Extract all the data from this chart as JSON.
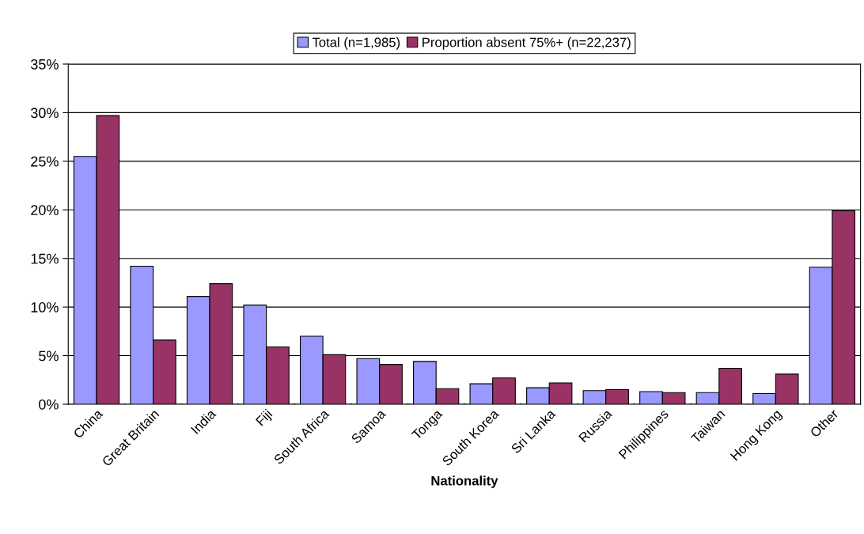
{
  "chart_data": {
    "type": "bar",
    "xlabel": "Nationality",
    "categories": [
      "China",
      "Great Britain",
      "India",
      "Fiji",
      "South Africa",
      "Samoa",
      "Tonga",
      "South Korea",
      "Sri Lanka",
      "Russia",
      "Philippines",
      "Taiwan",
      "Hong Kong",
      "Other"
    ],
    "series": [
      {
        "name": "Total (n=1,985)",
        "color": "#9999ff",
        "values": [
          25.5,
          14.2,
          11.1,
          10.2,
          7.0,
          4.7,
          4.4,
          2.1,
          1.7,
          1.4,
          1.3,
          1.2,
          1.1,
          14.1
        ]
      },
      {
        "name": "Proportion absent 75%+ (n=22,237)",
        "color": "#993366",
        "values": [
          29.7,
          6.6,
          12.4,
          5.9,
          5.1,
          4.1,
          1.6,
          2.7,
          2.2,
          1.5,
          1.2,
          3.7,
          3.1,
          19.9
        ]
      }
    ],
    "ylim": [
      0,
      35
    ],
    "yticks": [
      {
        "value": 0,
        "label": "0%"
      },
      {
        "value": 5,
        "label": "5%"
      },
      {
        "value": 10,
        "label": "10%"
      },
      {
        "value": 15,
        "label": "15%"
      },
      {
        "value": 20,
        "label": "20%"
      },
      {
        "value": 25,
        "label": "25%"
      },
      {
        "value": 30,
        "label": "30%"
      },
      {
        "value": 35,
        "label": "35%"
      }
    ],
    "grid": "y",
    "legend": "top"
  }
}
